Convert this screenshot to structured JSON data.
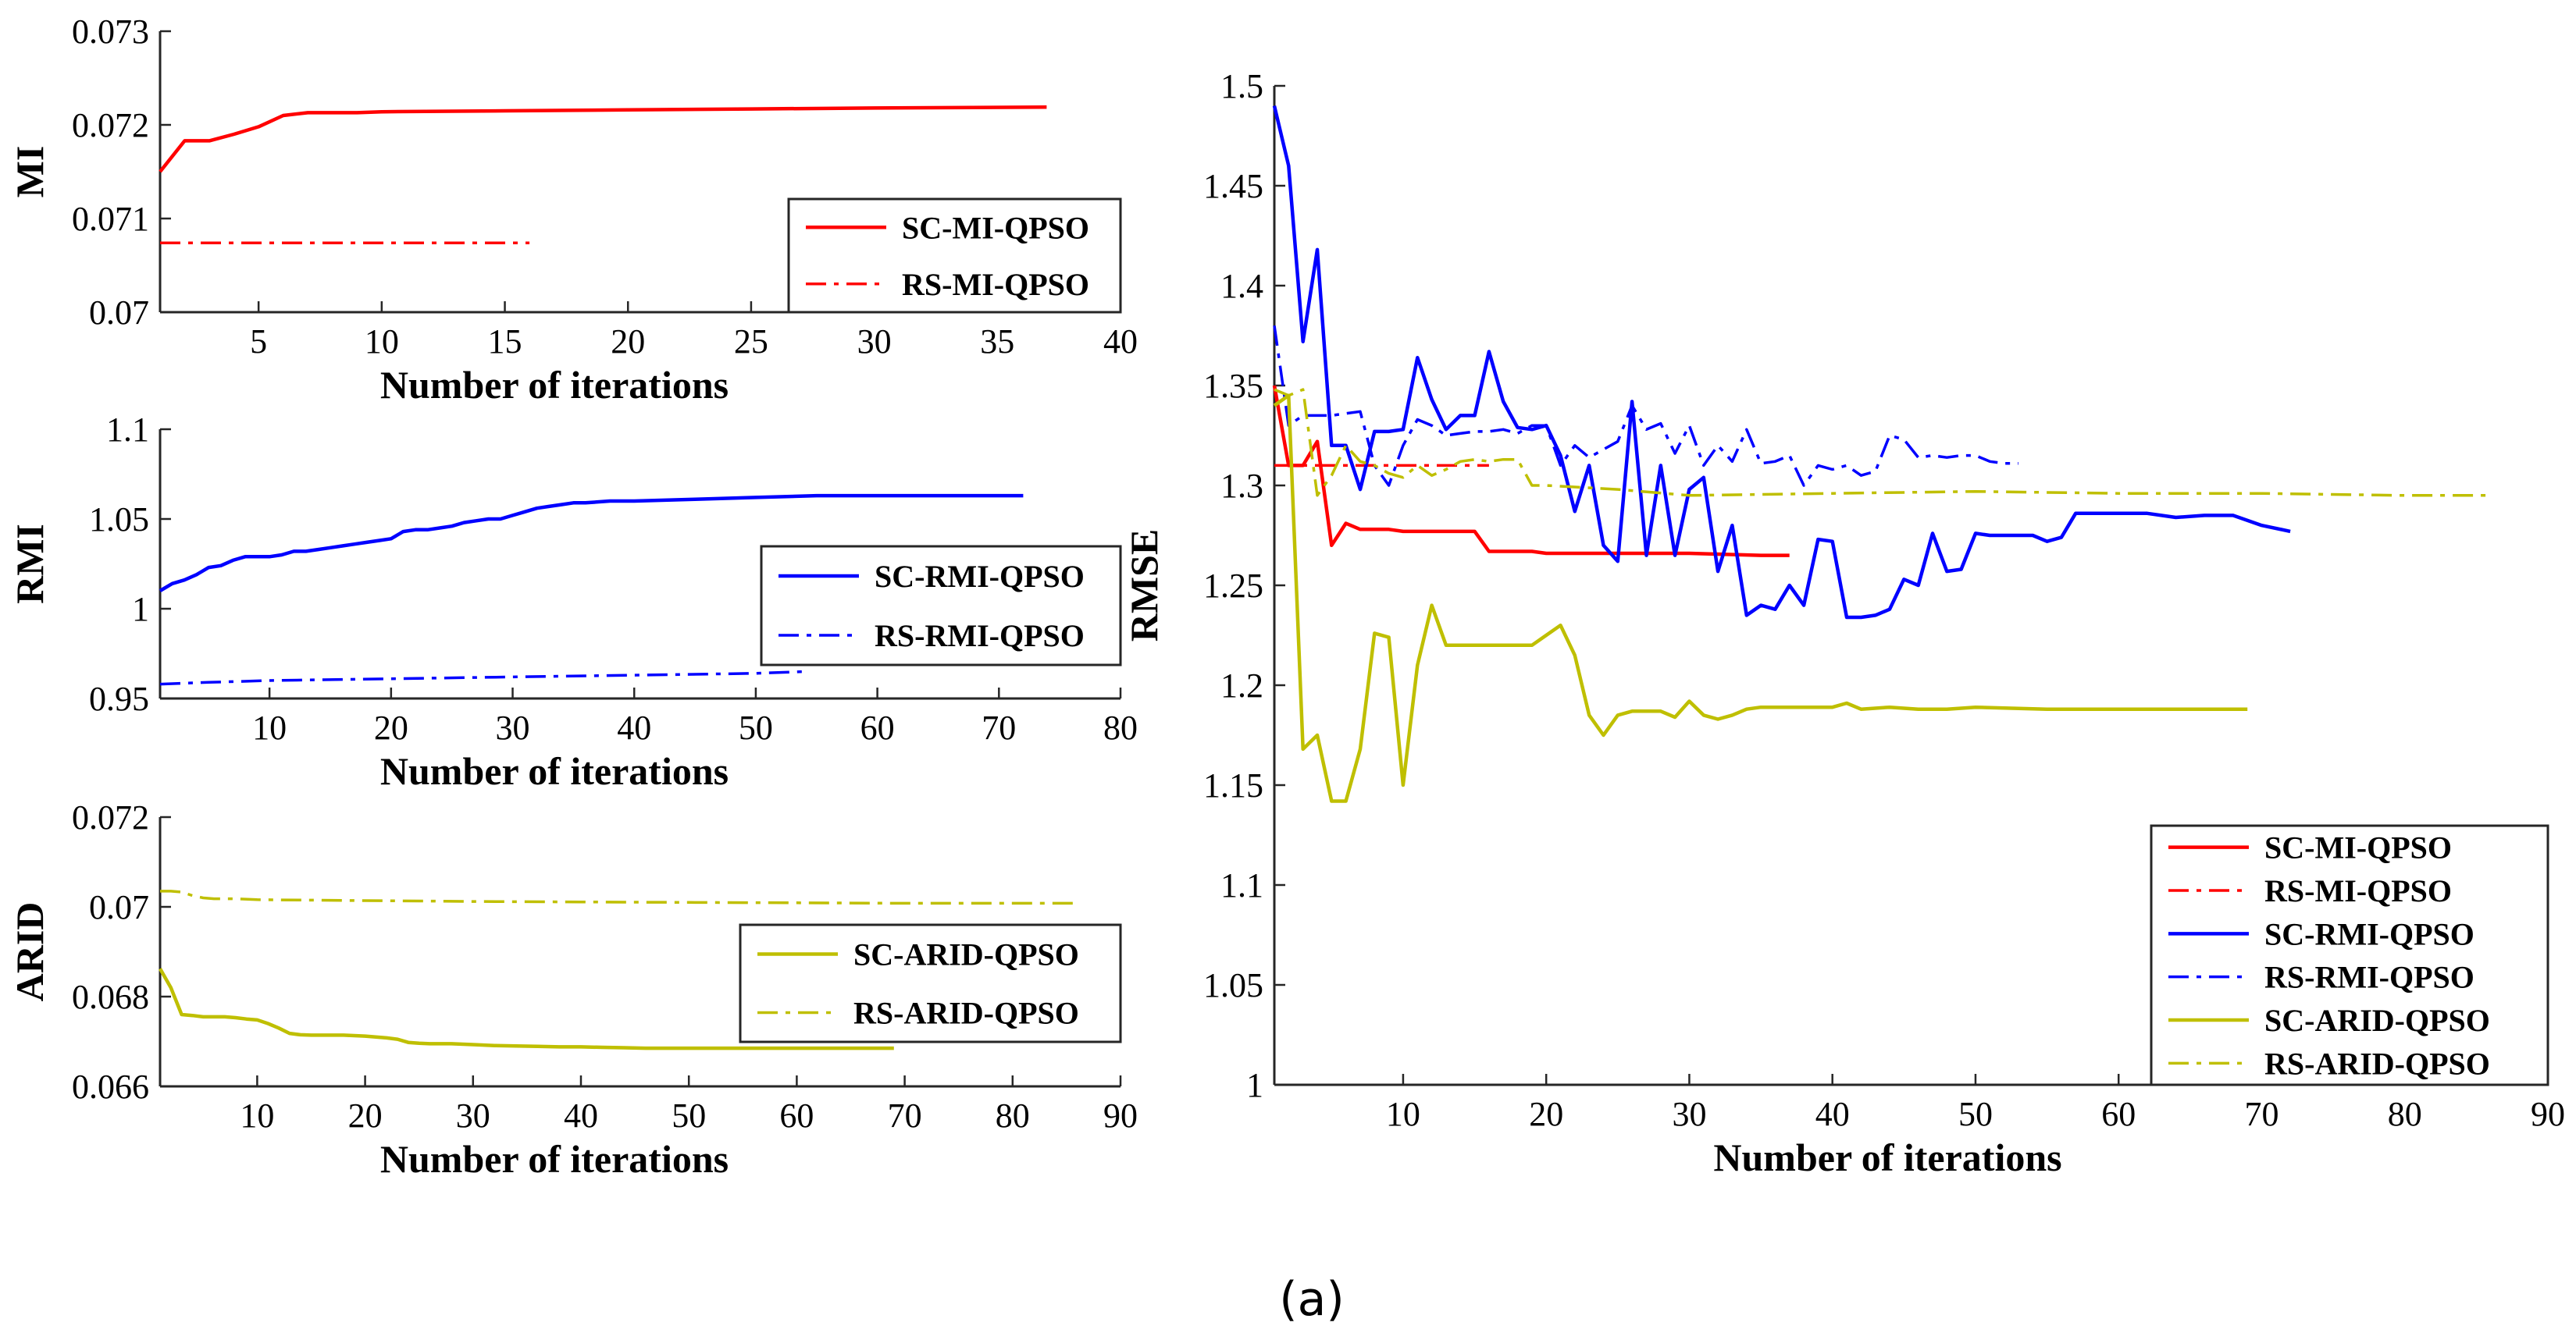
{
  "caption": "(a)",
  "colors": {
    "red": "#ff0000",
    "blue": "#0000ff",
    "olive": "#bfbf00"
  },
  "chart_data": [
    {
      "id": "mi",
      "type": "line",
      "xlabel": "Number of iterations",
      "ylabel": "MI",
      "xlim": [
        1,
        40
      ],
      "ylim": [
        0.07,
        0.073
      ],
      "xticks": [
        5,
        10,
        15,
        20,
        25,
        30,
        35,
        40
      ],
      "yticks": [
        "0.07",
        "0.071",
        "0.072",
        "0.073"
      ],
      "legend_position": "bottom-right",
      "series": [
        {
          "name": "SC-MI-QPSO",
          "color": "#ff0000",
          "dash": "solid",
          "x": [
            1,
            2,
            3,
            4,
            5,
            6,
            7,
            8,
            9,
            10,
            15,
            20,
            25,
            30,
            37
          ],
          "values": [
            0.0715,
            0.07183,
            0.07183,
            0.0719,
            0.07198,
            0.0721,
            0.07213,
            0.07213,
            0.07213,
            0.07214,
            0.07215,
            0.07216,
            0.07217,
            0.07218,
            0.07219
          ]
        },
        {
          "name": "RS-MI-QPSO",
          "color": "#ff0000",
          "dash": "dashdot",
          "x": [
            1,
            16
          ],
          "values": [
            0.07074,
            0.07074
          ]
        }
      ]
    },
    {
      "id": "rmi",
      "type": "line",
      "xlabel": "Number of iterations",
      "ylabel": "RMI",
      "xlim": [
        1,
        80
      ],
      "ylim": [
        0.95,
        1.1
      ],
      "xticks": [
        10,
        20,
        30,
        40,
        50,
        60,
        70,
        80
      ],
      "yticks": [
        "0.95",
        "1",
        "1.05",
        "1.1"
      ],
      "legend_position": "bottom-right",
      "series": [
        {
          "name": "SC-RMI-QPSO",
          "color": "#0000ff",
          "dash": "solid",
          "x": [
            1,
            2,
            3,
            4,
            5,
            6,
            7,
            8,
            9,
            10,
            11,
            12,
            13,
            14,
            15,
            16,
            17,
            18,
            19,
            20,
            21,
            22,
            23,
            24,
            25,
            26,
            27,
            28,
            29,
            30,
            31,
            32,
            33,
            34,
            35,
            36,
            38,
            40,
            45,
            50,
            55,
            60,
            65,
            72
          ],
          "values": [
            1.01,
            1.014,
            1.016,
            1.019,
            1.023,
            1.024,
            1.027,
            1.029,
            1.029,
            1.029,
            1.03,
            1.032,
            1.032,
            1.033,
            1.034,
            1.035,
            1.036,
            1.037,
            1.038,
            1.039,
            1.043,
            1.044,
            1.044,
            1.045,
            1.046,
            1.048,
            1.049,
            1.05,
            1.05,
            1.052,
            1.054,
            1.056,
            1.057,
            1.058,
            1.059,
            1.059,
            1.06,
            1.06,
            1.061,
            1.062,
            1.063,
            1.063,
            1.063,
            1.063
          ]
        },
        {
          "name": "RS-RMI-QPSO",
          "color": "#0000ff",
          "dash": "dashdot",
          "x": [
            1,
            5,
            10,
            20,
            30,
            40,
            50,
            54
          ],
          "values": [
            0.958,
            0.959,
            0.96,
            0.961,
            0.962,
            0.963,
            0.964,
            0.965
          ]
        }
      ]
    },
    {
      "id": "arid",
      "type": "line",
      "xlabel": "Number of iterations",
      "ylabel": "ARID",
      "xlim": [
        1,
        90
      ],
      "ylim": [
        0.066,
        0.072
      ],
      "xticks": [
        10,
        20,
        30,
        40,
        50,
        60,
        70,
        80,
        90
      ],
      "yticks": [
        "0.066",
        "0.068",
        "0.07",
        "0.072"
      ],
      "legend_position": "bottom-right",
      "series": [
        {
          "name": "SC-ARID-QPSO",
          "color": "#bfbf00",
          "dash": "solid",
          "x": [
            1,
            2,
            3,
            4,
            5,
            6,
            7,
            8,
            9,
            10,
            11,
            12,
            13,
            14,
            15,
            16,
            18,
            20,
            22,
            23,
            24,
            25,
            26,
            28,
            30,
            32,
            34,
            36,
            38,
            40,
            42,
            44,
            46,
            48,
            50,
            55,
            60,
            65,
            69
          ],
          "values": [
            0.06862,
            0.0682,
            0.0676,
            0.06758,
            0.06755,
            0.06755,
            0.06755,
            0.06753,
            0.0675,
            0.06748,
            0.0674,
            0.0673,
            0.06718,
            0.06715,
            0.06714,
            0.06714,
            0.06714,
            0.06712,
            0.06708,
            0.06705,
            0.06698,
            0.06696,
            0.06695,
            0.06695,
            0.06693,
            0.06691,
            0.0669,
            0.06689,
            0.06688,
            0.06688,
            0.06687,
            0.06686,
            0.06685,
            0.06685,
            0.06685,
            0.06685,
            0.06685,
            0.06685,
            0.06685
          ]
        },
        {
          "name": "RS-ARID-QPSO",
          "color": "#bfbf00",
          "dash": "dashdot",
          "x": [
            1,
            2,
            3,
            4,
            5,
            6,
            8,
            10,
            15,
            20,
            25,
            30,
            40,
            50,
            60,
            70,
            80,
            86
          ],
          "values": [
            0.07035,
            0.07035,
            0.07033,
            0.07025,
            0.0702,
            0.07018,
            0.07018,
            0.07016,
            0.07015,
            0.07014,
            0.07013,
            0.07012,
            0.07011,
            0.0701,
            0.07009,
            0.07008,
            0.07008,
            0.07008
          ]
        }
      ]
    },
    {
      "id": "rmse",
      "type": "line",
      "xlabel": "Number of iterations",
      "ylabel": "RMSE",
      "xlim": [
        1,
        90
      ],
      "ylim": [
        1,
        1.5
      ],
      "xticks": [
        10,
        20,
        30,
        40,
        50,
        60,
        70,
        80,
        90
      ],
      "yticks": [
        "1",
        "1.05",
        "1.1",
        "1.15",
        "1.2",
        "1.25",
        "1.3",
        "1.35",
        "1.4",
        "1.45",
        "1.5"
      ],
      "legend_position": "bottom-right",
      "series": [
        {
          "name": "SC-MI-QPSO",
          "color": "#ff0000",
          "dash": "solid",
          "x": [
            1,
            2,
            3,
            4,
            5,
            6,
            7,
            8,
            9,
            10,
            11,
            12,
            13,
            14,
            15,
            16,
            17,
            18,
            19,
            20,
            22,
            25,
            30,
            35,
            37
          ],
          "values": [
            1.35,
            1.31,
            1.31,
            1.322,
            1.27,
            1.281,
            1.278,
            1.278,
            1.278,
            1.277,
            1.277,
            1.277,
            1.277,
            1.277,
            1.277,
            1.267,
            1.267,
            1.267,
            1.267,
            1.266,
            1.266,
            1.266,
            1.266,
            1.265,
            1.265
          ]
        },
        {
          "name": "RS-MI-QPSO",
          "color": "#ff0000",
          "dash": "dashdot",
          "x": [
            1,
            5,
            10,
            16
          ],
          "values": [
            1.31,
            1.31,
            1.31,
            1.31
          ]
        },
        {
          "name": "SC-RMI-QPSO",
          "color": "#0000ff",
          "dash": "solid",
          "x": [
            1,
            2,
            3,
            4,
            5,
            6,
            7,
            8,
            9,
            10,
            11,
            12,
            13,
            14,
            15,
            16,
            17,
            18,
            19,
            20,
            21,
            22,
            23,
            24,
            25,
            26,
            27,
            28,
            29,
            30,
            31,
            32,
            33,
            34,
            35,
            36,
            37,
            38,
            39,
            40,
            41,
            42,
            43,
            44,
            45,
            46,
            47,
            48,
            49,
            50,
            51,
            52,
            53,
            54,
            55,
            56,
            57,
            58,
            60,
            62,
            64,
            66,
            68,
            70,
            72
          ],
          "values": [
            1.49,
            1.46,
            1.372,
            1.418,
            1.32,
            1.32,
            1.298,
            1.327,
            1.327,
            1.328,
            1.364,
            1.343,
            1.328,
            1.335,
            1.335,
            1.367,
            1.342,
            1.329,
            1.328,
            1.33,
            1.315,
            1.287,
            1.31,
            1.27,
            1.262,
            1.342,
            1.265,
            1.31,
            1.265,
            1.298,
            1.304,
            1.257,
            1.28,
            1.235,
            1.24,
            1.238,
            1.25,
            1.24,
            1.273,
            1.272,
            1.234,
            1.234,
            1.235,
            1.238,
            1.253,
            1.25,
            1.276,
            1.257,
            1.258,
            1.276,
            1.275,
            1.275,
            1.275,
            1.275,
            1.272,
            1.274,
            1.286,
            1.286,
            1.286,
            1.286,
            1.284,
            1.285,
            1.285,
            1.28,
            1.277
          ]
        },
        {
          "name": "RS-RMI-QPSO",
          "color": "#0000ff",
          "dash": "dashdot",
          "x": [
            1,
            2,
            3,
            4,
            5,
            6,
            7,
            8,
            9,
            10,
            11,
            12,
            13,
            14,
            15,
            16,
            17,
            18,
            19,
            20,
            21,
            22,
            23,
            24,
            25,
            26,
            27,
            28,
            29,
            30,
            31,
            32,
            33,
            34,
            35,
            36,
            37,
            38,
            39,
            40,
            41,
            42,
            43,
            44,
            45,
            46,
            47,
            48,
            49,
            50,
            51,
            52,
            53
          ],
          "values": [
            1.38,
            1.33,
            1.335,
            1.335,
            1.335,
            1.336,
            1.337,
            1.31,
            1.3,
            1.32,
            1.333,
            1.33,
            1.325,
            1.326,
            1.327,
            1.327,
            1.328,
            1.326,
            1.33,
            1.33,
            1.31,
            1.32,
            1.314,
            1.318,
            1.322,
            1.34,
            1.328,
            1.331,
            1.316,
            1.33,
            1.31,
            1.32,
            1.312,
            1.328,
            1.311,
            1.312,
            1.315,
            1.3,
            1.31,
            1.308,
            1.31,
            1.305,
            1.307,
            1.325,
            1.323,
            1.314,
            1.315,
            1.314,
            1.315,
            1.315,
            1.312,
            1.311,
            1.311
          ]
        },
        {
          "name": "SC-ARID-QPSO",
          "color": "#bfbf00",
          "dash": "solid",
          "x": [
            1,
            2,
            3,
            4,
            5,
            6,
            7,
            8,
            9,
            10,
            11,
            12,
            13,
            14,
            15,
            16,
            17,
            18,
            19,
            20,
            21,
            22,
            23,
            24,
            25,
            26,
            27,
            28,
            29,
            30,
            31,
            32,
            33,
            34,
            35,
            36,
            38,
            40,
            41,
            42,
            44,
            46,
            48,
            50,
            55,
            60,
            65,
            69
          ],
          "values": [
            1.34,
            1.345,
            1.168,
            1.175,
            1.142,
            1.142,
            1.168,
            1.226,
            1.224,
            1.15,
            1.21,
            1.24,
            1.22,
            1.22,
            1.22,
            1.22,
            1.22,
            1.22,
            1.22,
            1.225,
            1.23,
            1.215,
            1.185,
            1.175,
            1.185,
            1.187,
            1.187,
            1.187,
            1.184,
            1.192,
            1.185,
            1.183,
            1.185,
            1.188,
            1.189,
            1.189,
            1.189,
            1.189,
            1.191,
            1.188,
            1.189,
            1.188,
            1.188,
            1.189,
            1.188,
            1.188,
            1.188,
            1.188
          ]
        },
        {
          "name": "RS-ARID-QPSO",
          "color": "#bfbf00",
          "dash": "dashdot",
          "x": [
            1,
            2,
            3,
            4,
            5,
            6,
            7,
            8,
            9,
            10,
            11,
            12,
            13,
            14,
            15,
            16,
            17,
            18,
            19,
            20,
            25,
            30,
            40,
            50,
            60,
            70,
            80,
            86
          ],
          "values": [
            1.348,
            1.345,
            1.348,
            1.295,
            1.305,
            1.32,
            1.312,
            1.31,
            1.306,
            1.304,
            1.31,
            1.305,
            1.308,
            1.312,
            1.313,
            1.312,
            1.313,
            1.313,
            1.3,
            1.3,
            1.298,
            1.295,
            1.296,
            1.297,
            1.296,
            1.296,
            1.295,
            1.295
          ]
        }
      ]
    }
  ]
}
